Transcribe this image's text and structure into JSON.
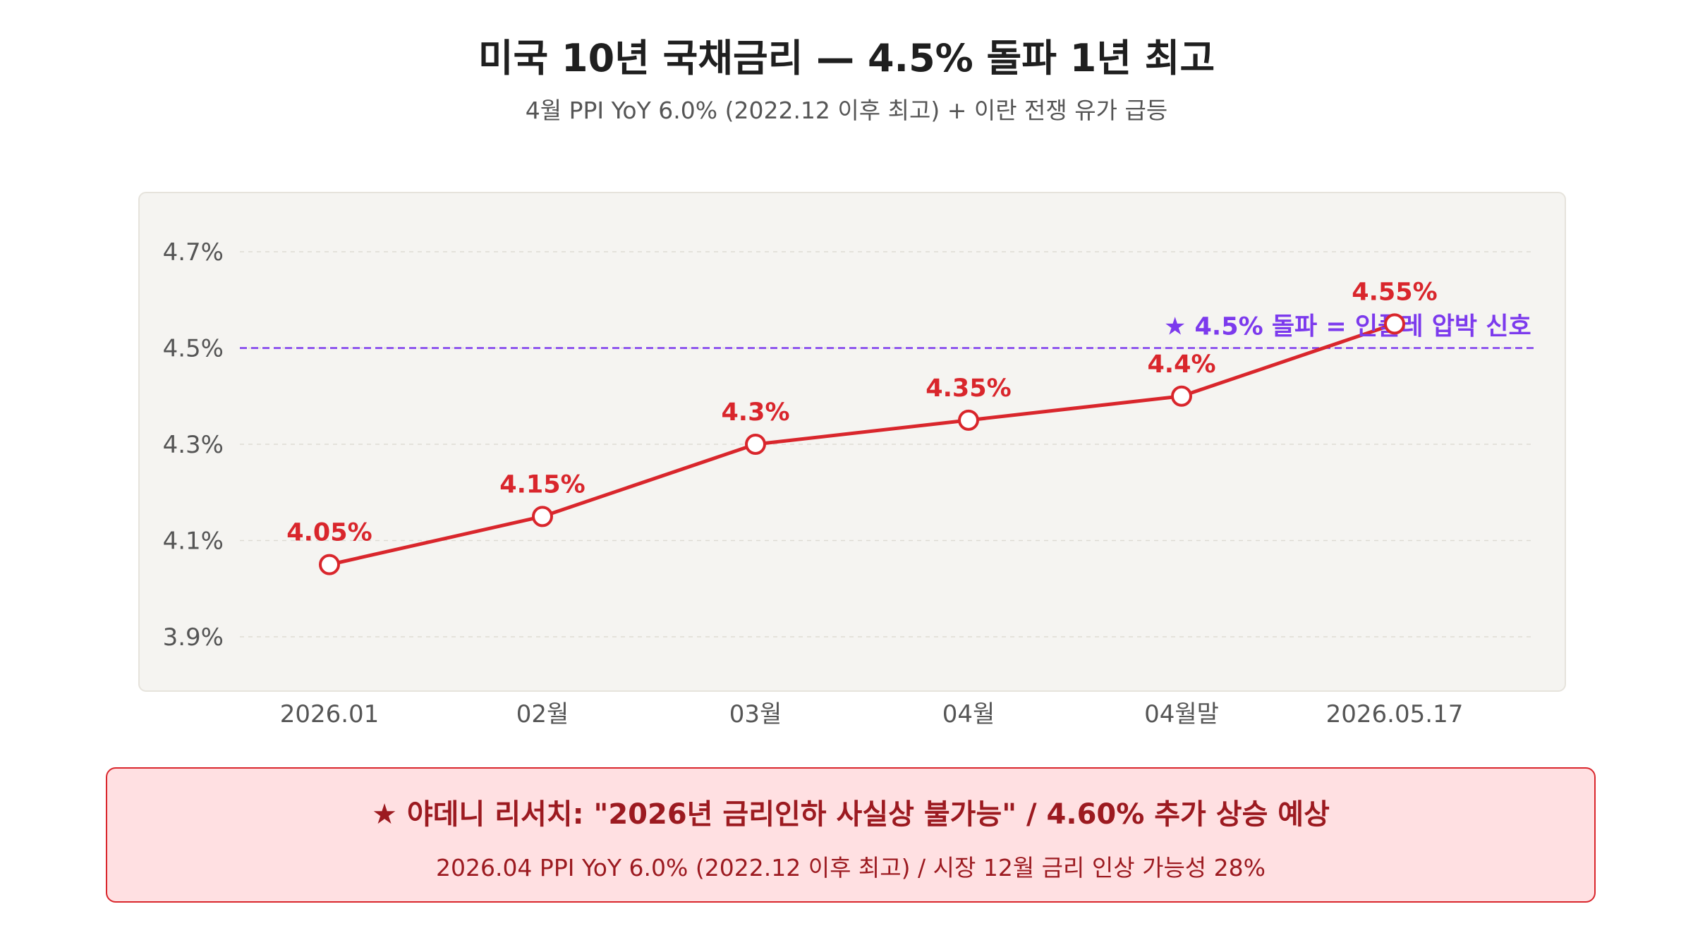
{
  "header": {
    "title": "미국 10년 국채금리 — 4.5% 돌파 1년 최고",
    "subtitle": "4월 PPI YoY 6.0% (2022.12 이후 최고) + 이란 전쟁 유가 급등"
  },
  "chart_data": {
    "type": "line",
    "title": "미국 10년 국채금리 — 4.5% 돌파 1년 최고",
    "subtitle": "4월 PPI YoY 6.0% (2022.12 이후 최고) + 이란 전쟁 유가 급등",
    "categories": [
      "2026.01",
      "02월",
      "03월",
      "04월",
      "04월말",
      "2026.05.17"
    ],
    "series": [
      {
        "values": [
          4.05,
          4.15,
          4.3,
          4.35,
          4.4,
          4.55
        ],
        "data_labels": [
          "4.05%",
          "4.15%",
          "4.3%",
          "4.35%",
          "4.4%",
          "4.55%"
        ],
        "color": "#d9262c"
      }
    ],
    "ylim": [
      3.8,
      4.8
    ],
    "yticks": [
      3.9,
      4.1,
      4.3,
      4.5,
      4.7
    ],
    "ytick_labels": [
      "3.9%",
      "4.1%",
      "4.3%",
      "4.5%",
      "4.7%"
    ],
    "grid": true,
    "reference_line": {
      "value": 4.5,
      "label": "★ 4.5% 돌파 = 인플레 압박 신호",
      "color": "#7c3aed"
    },
    "colors": {
      "plot_bg": "#f5f4f1",
      "grid": "#dedbd4",
      "tick_text": "#555555"
    }
  },
  "callout": {
    "main": "★ 야데니 리서치: \"2026년 금리인하 사실상 불가능\" / 4.60% 추가 상승 예상",
    "sub": "2026.04 PPI YoY 6.0% (2022.12 이후 최고) / 시장 12월 금리 인상 가능성 28%",
    "colors": {
      "bg": "#ffe0e2",
      "border": "#d9262c",
      "text": "#9c1a20"
    }
  }
}
